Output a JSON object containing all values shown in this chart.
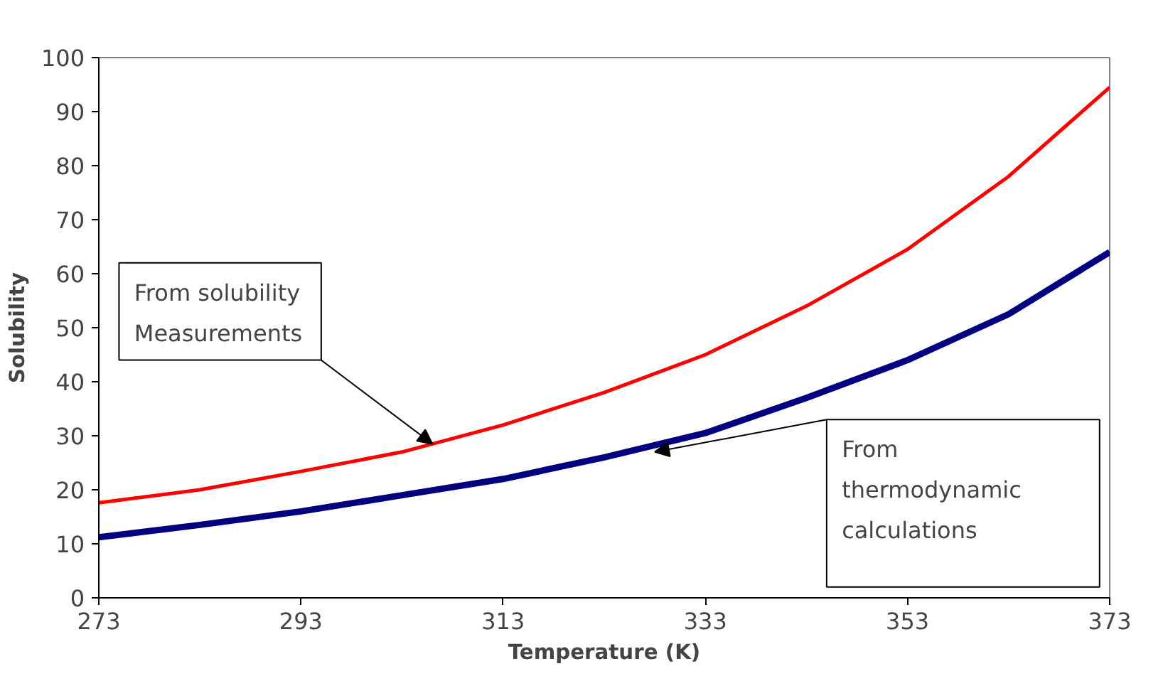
{
  "chart_data": {
    "type": "line",
    "xlabel": "Temperature (K)",
    "ylabel": "Solubility",
    "x": [
      273,
      283,
      293,
      303,
      313,
      323,
      333,
      343,
      353,
      363,
      373
    ],
    "xlim": [
      273,
      373
    ],
    "xticks": [
      273,
      293,
      313,
      333,
      353,
      373
    ],
    "ylim": [
      0,
      100
    ],
    "yticks": [
      0,
      10,
      20,
      30,
      40,
      50,
      60,
      70,
      80,
      90,
      100
    ],
    "grid": false,
    "marker": "none",
    "line_style": "solid",
    "series": [
      {
        "color": "#ff0000",
        "values": [
          17.6,
          20,
          23.4,
          27,
          32,
          38,
          45,
          54,
          64.5,
          78,
          94.5
        ]
      },
      {
        "color": "#000080",
        "values": [
          11.2,
          13.5,
          16,
          19,
          22,
          26,
          30.5,
          37,
          44,
          52.5,
          64
        ]
      }
    ],
    "annotations": [
      {
        "text": "From solubility\nMeasurements",
        "x": 306,
        "y": 28.5
      },
      {
        "text": "From\nthermodynamic\ncalculations",
        "x": 328,
        "y": 27
      }
    ]
  }
}
